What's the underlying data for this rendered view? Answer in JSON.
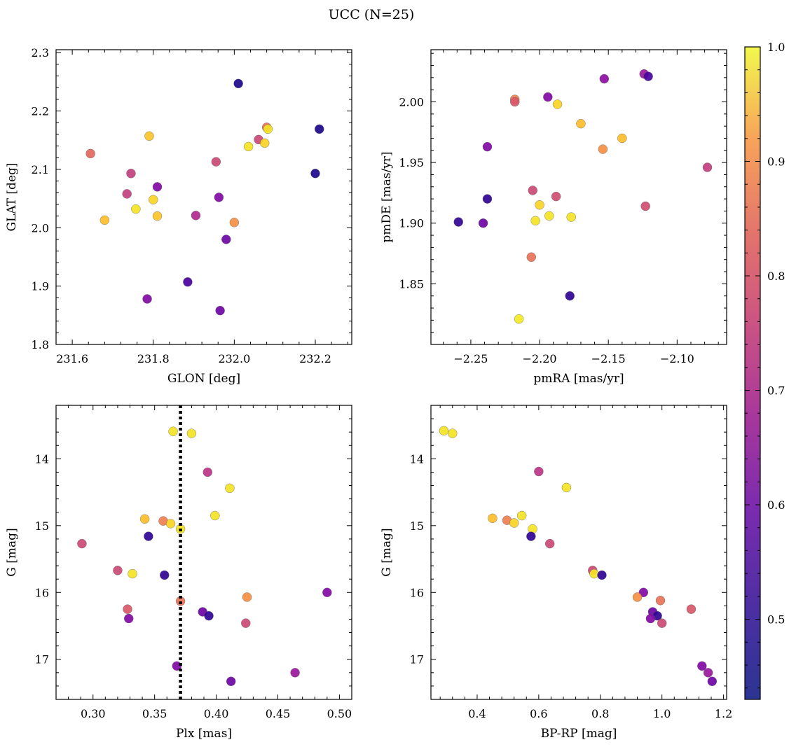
{
  "title": "UCC (N=25)",
  "colorbar": {
    "min": 0.43,
    "max": 1.0,
    "ticks": [
      "0.5",
      "0.6",
      "0.7",
      "0.8",
      "0.9",
      "1.0"
    ],
    "tick_values": [
      0.5,
      0.6,
      0.7,
      0.8,
      0.9,
      1.0
    ],
    "colormap": "plasma"
  },
  "chart_data": [
    {
      "type": "scatter",
      "title": "",
      "xlabel": "GLON [deg]",
      "ylabel": "GLAT [deg]",
      "xlim": [
        231.56,
        232.29
      ],
      "ylim": [
        1.8,
        2.305
      ],
      "y_inverted": false,
      "xticks": [
        231.6,
        231.8,
        232.0,
        232.2
      ],
      "xtick_labels": [
        "231.6",
        "231.8",
        "232.0",
        "232.2"
      ],
      "yticks": [
        1.8,
        1.9,
        2.0,
        2.1,
        2.2,
        2.3
      ],
      "ytick_labels": [
        "1.8",
        "1.9",
        "2.0",
        "2.1",
        "2.2",
        "2.3"
      ],
      "points": [
        {
          "x": 232.01,
          "y": 2.247,
          "c": 0.45
        },
        {
          "x": 232.21,
          "y": 2.169,
          "c": 0.45
        },
        {
          "x": 232.2,
          "y": 2.093,
          "c": 0.45
        },
        {
          "x": 231.645,
          "y": 2.127,
          "c": 0.78
        },
        {
          "x": 231.79,
          "y": 2.157,
          "c": 0.93
        },
        {
          "x": 231.745,
          "y": 2.093,
          "c": 0.7
        },
        {
          "x": 231.735,
          "y": 2.058,
          "c": 0.7
        },
        {
          "x": 231.81,
          "y": 2.07,
          "c": 0.58
        },
        {
          "x": 231.8,
          "y": 2.048,
          "c": 0.95
        },
        {
          "x": 231.757,
          "y": 2.032,
          "c": 0.97
        },
        {
          "x": 231.68,
          "y": 2.013,
          "c": 0.92
        },
        {
          "x": 231.81,
          "y": 2.02,
          "c": 0.93
        },
        {
          "x": 231.905,
          "y": 2.021,
          "c": 0.66
        },
        {
          "x": 231.955,
          "y": 2.113,
          "c": 0.72
        },
        {
          "x": 232.06,
          "y": 2.151,
          "c": 0.72
        },
        {
          "x": 232.08,
          "y": 2.172,
          "c": 0.8
        },
        {
          "x": 232.083,
          "y": 2.169,
          "c": 0.97
        },
        {
          "x": 232.035,
          "y": 2.139,
          "c": 0.97
        },
        {
          "x": 232.075,
          "y": 2.145,
          "c": 0.95
        },
        {
          "x": 231.962,
          "y": 2.052,
          "c": 0.58
        },
        {
          "x": 232.0,
          "y": 2.009,
          "c": 0.85
        },
        {
          "x": 231.98,
          "y": 1.98,
          "c": 0.55
        },
        {
          "x": 231.885,
          "y": 1.907,
          "c": 0.5
        },
        {
          "x": 231.785,
          "y": 1.878,
          "c": 0.58
        },
        {
          "x": 231.965,
          "y": 1.858,
          "c": 0.55
        }
      ]
    },
    {
      "type": "scatter",
      "title": "",
      "xlabel": "pmRA [mas/yr]",
      "ylabel": "pmDE [mas/yr]",
      "xlim": [
        -2.279,
        -2.064
      ],
      "ylim": [
        1.8,
        2.043
      ],
      "y_inverted": false,
      "xticks": [
        -2.25,
        -2.2,
        -2.15,
        -2.1
      ],
      "xtick_labels": [
        "−2.25",
        "−2.20",
        "−2.15",
        "−2.10"
      ],
      "yticks": [
        1.85,
        1.9,
        1.95,
        2.0
      ],
      "ytick_labels": [
        "1.85",
        "1.90",
        "1.95",
        "2.00"
      ],
      "points": [
        {
          "x": -2.124,
          "y": 2.023,
          "c": 0.62
        },
        {
          "x": -2.121,
          "y": 2.021,
          "c": 0.5
        },
        {
          "x": -2.153,
          "y": 2.019,
          "c": 0.6
        },
        {
          "x": -2.194,
          "y": 2.004,
          "c": 0.58
        },
        {
          "x": -2.218,
          "y": 2.002,
          "c": 0.82
        },
        {
          "x": -2.218,
          "y": 2.0,
          "c": 0.75
        },
        {
          "x": -2.187,
          "y": 1.998,
          "c": 0.95
        },
        {
          "x": -2.17,
          "y": 1.982,
          "c": 0.92
        },
        {
          "x": -2.14,
          "y": 1.97,
          "c": 0.92
        },
        {
          "x": -2.154,
          "y": 1.961,
          "c": 0.85
        },
        {
          "x": -2.238,
          "y": 1.963,
          "c": 0.58
        },
        {
          "x": -2.078,
          "y": 1.946,
          "c": 0.7
        },
        {
          "x": -2.205,
          "y": 1.927,
          "c": 0.72
        },
        {
          "x": -2.188,
          "y": 1.922,
          "c": 0.73
        },
        {
          "x": -2.238,
          "y": 1.92,
          "c": 0.47
        },
        {
          "x": -2.2,
          "y": 1.915,
          "c": 0.95
        },
        {
          "x": -2.123,
          "y": 1.914,
          "c": 0.73
        },
        {
          "x": -2.193,
          "y": 1.906,
          "c": 0.97
        },
        {
          "x": -2.177,
          "y": 1.905,
          "c": 0.97
        },
        {
          "x": -2.203,
          "y": 1.902,
          "c": 0.97
        },
        {
          "x": -2.259,
          "y": 1.901,
          "c": 0.47
        },
        {
          "x": -2.241,
          "y": 1.9,
          "c": 0.55
        },
        {
          "x": -2.206,
          "y": 1.872,
          "c": 0.8
        },
        {
          "x": -2.178,
          "y": 1.84,
          "c": 0.47
        },
        {
          "x": -2.215,
          "y": 1.821,
          "c": 0.98
        }
      ]
    },
    {
      "type": "scatter",
      "title": "",
      "xlabel": "Plx [mas]",
      "ylabel": "G [mag]",
      "xlim": [
        0.27,
        0.51
      ],
      "ylim": [
        13.2,
        17.6
      ],
      "y_inverted": true,
      "xticks": [
        0.3,
        0.35,
        0.4,
        0.45,
        0.5
      ],
      "xtick_labels": [
        "0.30",
        "0.35",
        "0.40",
        "0.45",
        "0.50"
      ],
      "yticks": [
        14,
        15,
        16,
        17
      ],
      "ytick_labels": [
        "14",
        "15",
        "16",
        "17"
      ],
      "vline": {
        "x": 0.371,
        "style": "dotted"
      },
      "points": [
        {
          "x": 0.365,
          "y": 13.59,
          "c": 0.97
        },
        {
          "x": 0.38,
          "y": 13.62,
          "c": 0.97
        },
        {
          "x": 0.393,
          "y": 14.2,
          "c": 0.68
        },
        {
          "x": 0.411,
          "y": 14.44,
          "c": 0.97
        },
        {
          "x": 0.399,
          "y": 14.85,
          "c": 0.97
        },
        {
          "x": 0.342,
          "y": 14.9,
          "c": 0.92
        },
        {
          "x": 0.357,
          "y": 14.93,
          "c": 0.82
        },
        {
          "x": 0.363,
          "y": 14.97,
          "c": 0.95
        },
        {
          "x": 0.371,
          "y": 15.05,
          "c": 0.97
        },
        {
          "x": 0.345,
          "y": 15.16,
          "c": 0.47
        },
        {
          "x": 0.291,
          "y": 15.27,
          "c": 0.72
        },
        {
          "x": 0.32,
          "y": 15.67,
          "c": 0.72
        },
        {
          "x": 0.332,
          "y": 15.72,
          "c": 0.97
        },
        {
          "x": 0.358,
          "y": 15.74,
          "c": 0.47
        },
        {
          "x": 0.49,
          "y": 16.0,
          "c": 0.58
        },
        {
          "x": 0.425,
          "y": 16.07,
          "c": 0.85
        },
        {
          "x": 0.371,
          "y": 16.13,
          "c": 0.8
        },
        {
          "x": 0.328,
          "y": 16.25,
          "c": 0.75
        },
        {
          "x": 0.389,
          "y": 16.29,
          "c": 0.55
        },
        {
          "x": 0.394,
          "y": 16.35,
          "c": 0.47
        },
        {
          "x": 0.329,
          "y": 16.39,
          "c": 0.58
        },
        {
          "x": 0.424,
          "y": 16.46,
          "c": 0.72
        },
        {
          "x": 0.368,
          "y": 17.1,
          "c": 0.58
        },
        {
          "x": 0.464,
          "y": 17.2,
          "c": 0.62
        },
        {
          "x": 0.412,
          "y": 17.33,
          "c": 0.55
        }
      ]
    },
    {
      "type": "scatter",
      "title": "",
      "xlabel": "BP-RP [mag]",
      "ylabel": "G [mag]",
      "xlim": [
        0.25,
        1.21
      ],
      "ylim": [
        13.2,
        17.6
      ],
      "y_inverted": true,
      "xticks": [
        0.4,
        0.6,
        0.8,
        1.0,
        1.2
      ],
      "xtick_labels": [
        "0.4",
        "0.6",
        "0.8",
        "1.0",
        "1.2"
      ],
      "yticks": [
        14,
        15,
        16,
        17
      ],
      "ytick_labels": [
        "14",
        "15",
        "16",
        "17"
      ],
      "points": [
        {
          "x": 0.292,
          "y": 13.58,
          "c": 0.97
        },
        {
          "x": 0.32,
          "y": 13.62,
          "c": 0.97
        },
        {
          "x": 0.6,
          "y": 14.19,
          "c": 0.68
        },
        {
          "x": 0.69,
          "y": 14.43,
          "c": 0.97
        },
        {
          "x": 0.45,
          "y": 14.89,
          "c": 0.92
        },
        {
          "x": 0.497,
          "y": 14.92,
          "c": 0.82
        },
        {
          "x": 0.52,
          "y": 14.96,
          "c": 0.95
        },
        {
          "x": 0.545,
          "y": 14.85,
          "c": 0.97
        },
        {
          "x": 0.58,
          "y": 15.05,
          "c": 0.97
        },
        {
          "x": 0.575,
          "y": 15.16,
          "c": 0.47
        },
        {
          "x": 0.636,
          "y": 15.27,
          "c": 0.72
        },
        {
          "x": 0.775,
          "y": 15.67,
          "c": 0.72
        },
        {
          "x": 0.78,
          "y": 15.72,
          "c": 0.97
        },
        {
          "x": 0.805,
          "y": 15.74,
          "c": 0.47
        },
        {
          "x": 0.94,
          "y": 16.0,
          "c": 0.58
        },
        {
          "x": 0.92,
          "y": 16.07,
          "c": 0.85
        },
        {
          "x": 0.995,
          "y": 16.12,
          "c": 0.8
        },
        {
          "x": 1.095,
          "y": 16.25,
          "c": 0.75
        },
        {
          "x": 0.97,
          "y": 16.29,
          "c": 0.55
        },
        {
          "x": 0.985,
          "y": 16.35,
          "c": 0.47
        },
        {
          "x": 0.963,
          "y": 16.39,
          "c": 0.58
        },
        {
          "x": 1.0,
          "y": 16.46,
          "c": 0.72
        },
        {
          "x": 1.13,
          "y": 17.1,
          "c": 0.58
        },
        {
          "x": 1.15,
          "y": 17.2,
          "c": 0.62
        },
        {
          "x": 1.163,
          "y": 17.33,
          "c": 0.55
        }
      ]
    }
  ]
}
